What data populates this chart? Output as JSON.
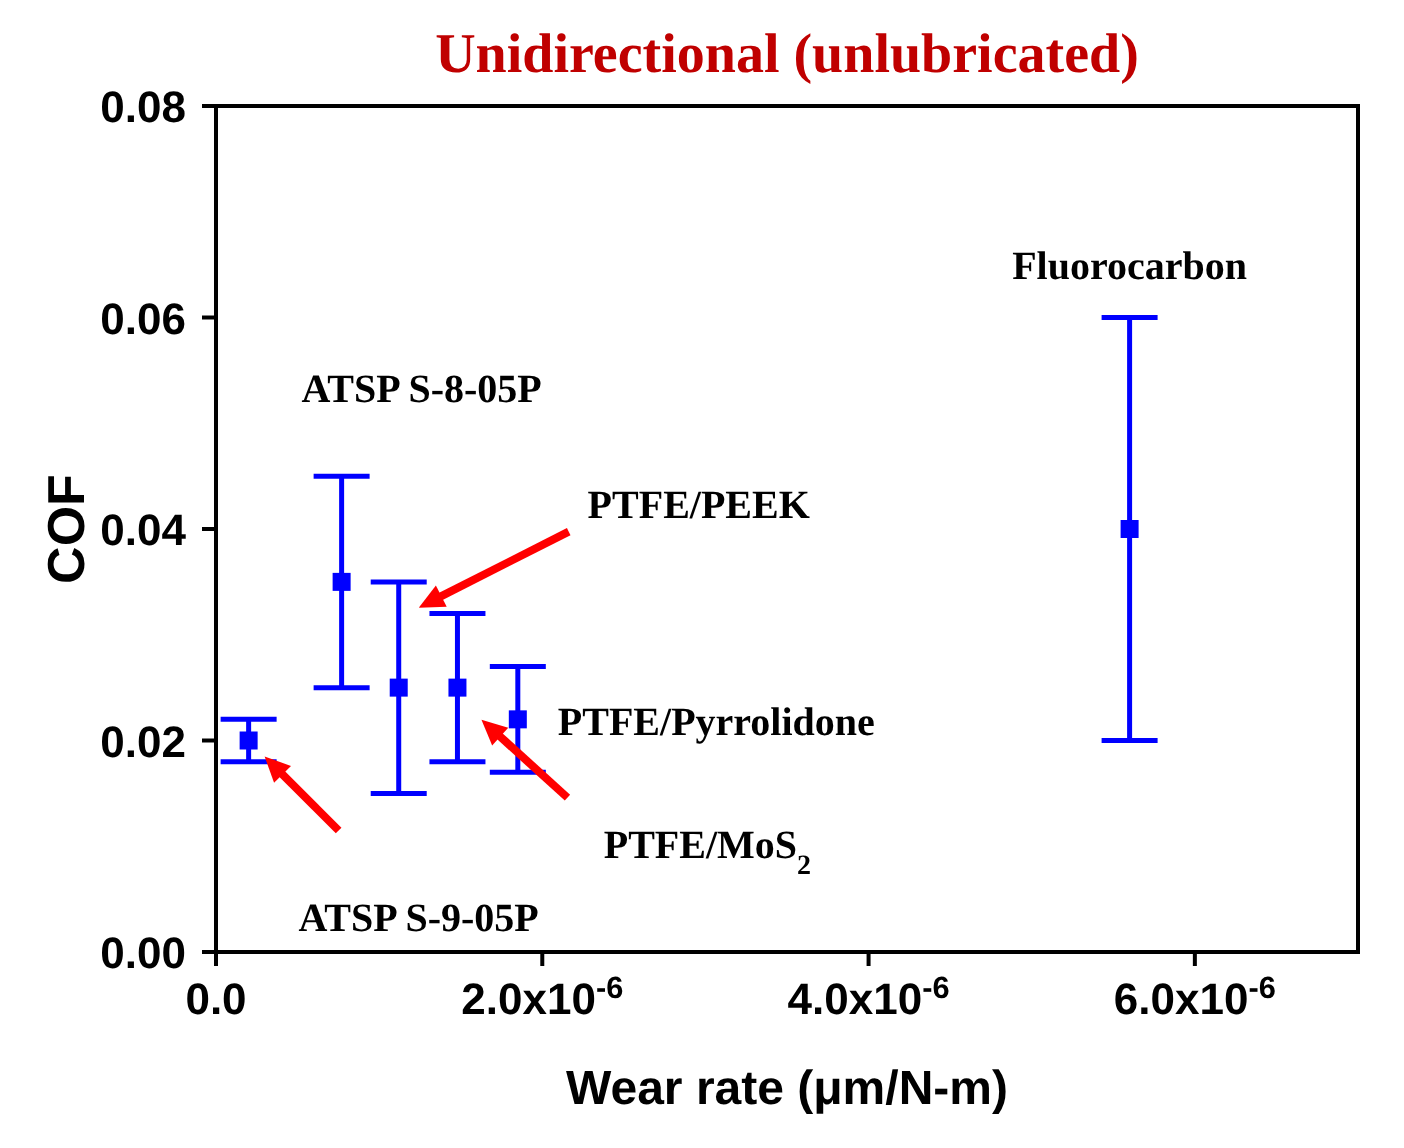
{
  "chart_data": {
    "type": "scatter",
    "title": "Unidirectional (unlubricated)",
    "xlabel": "Wear rate (μm/N-m)",
    "ylabel": "COF",
    "x": [
      2e-07,
      7.7e-07,
      1.12e-06,
      1.48e-06,
      1.85e-06,
      5.6e-06
    ],
    "series": [
      {
        "color": "#0000ff",
        "values": [
          0.02,
          0.035,
          0.025,
          0.025,
          0.022,
          0.04
        ],
        "errors": [
          0.002,
          0.01,
          0.01,
          0.007,
          0.005,
          0.02
        ]
      }
    ],
    "xlim": [
      0,
      7e-06
    ],
    "xticks": [
      {
        "value": 0,
        "label": "0.0"
      },
      {
        "value": 2e-06,
        "label": "2.0x10$^{-6}$"
      },
      {
        "value": 4e-06,
        "label": "4.0x10$^{-6}$"
      },
      {
        "value": 6e-06,
        "label": "6.0x10$^{-6}$"
      }
    ],
    "ylim": [
      0,
      0.08
    ],
    "yticks": [
      {
        "value": 0,
        "label": "0.00"
      },
      {
        "value": 0.02,
        "label": "0.02"
      },
      {
        "value": 0.04,
        "label": "0.04"
      },
      {
        "value": 0.06,
        "label": "0.06"
      },
      {
        "value": 0.08,
        "label": "0.08"
      }
    ],
    "marker": "square",
    "grid": false,
    "legend": false,
    "annotations": [
      "ATSP S-9-05P",
      "ATSP S-8-05P",
      "PTFE/PEEK",
      "PTFE/MoS$_{2}$",
      "PTFE/Pyrrolidone",
      "Fluorocarbon"
    ]
  }
}
